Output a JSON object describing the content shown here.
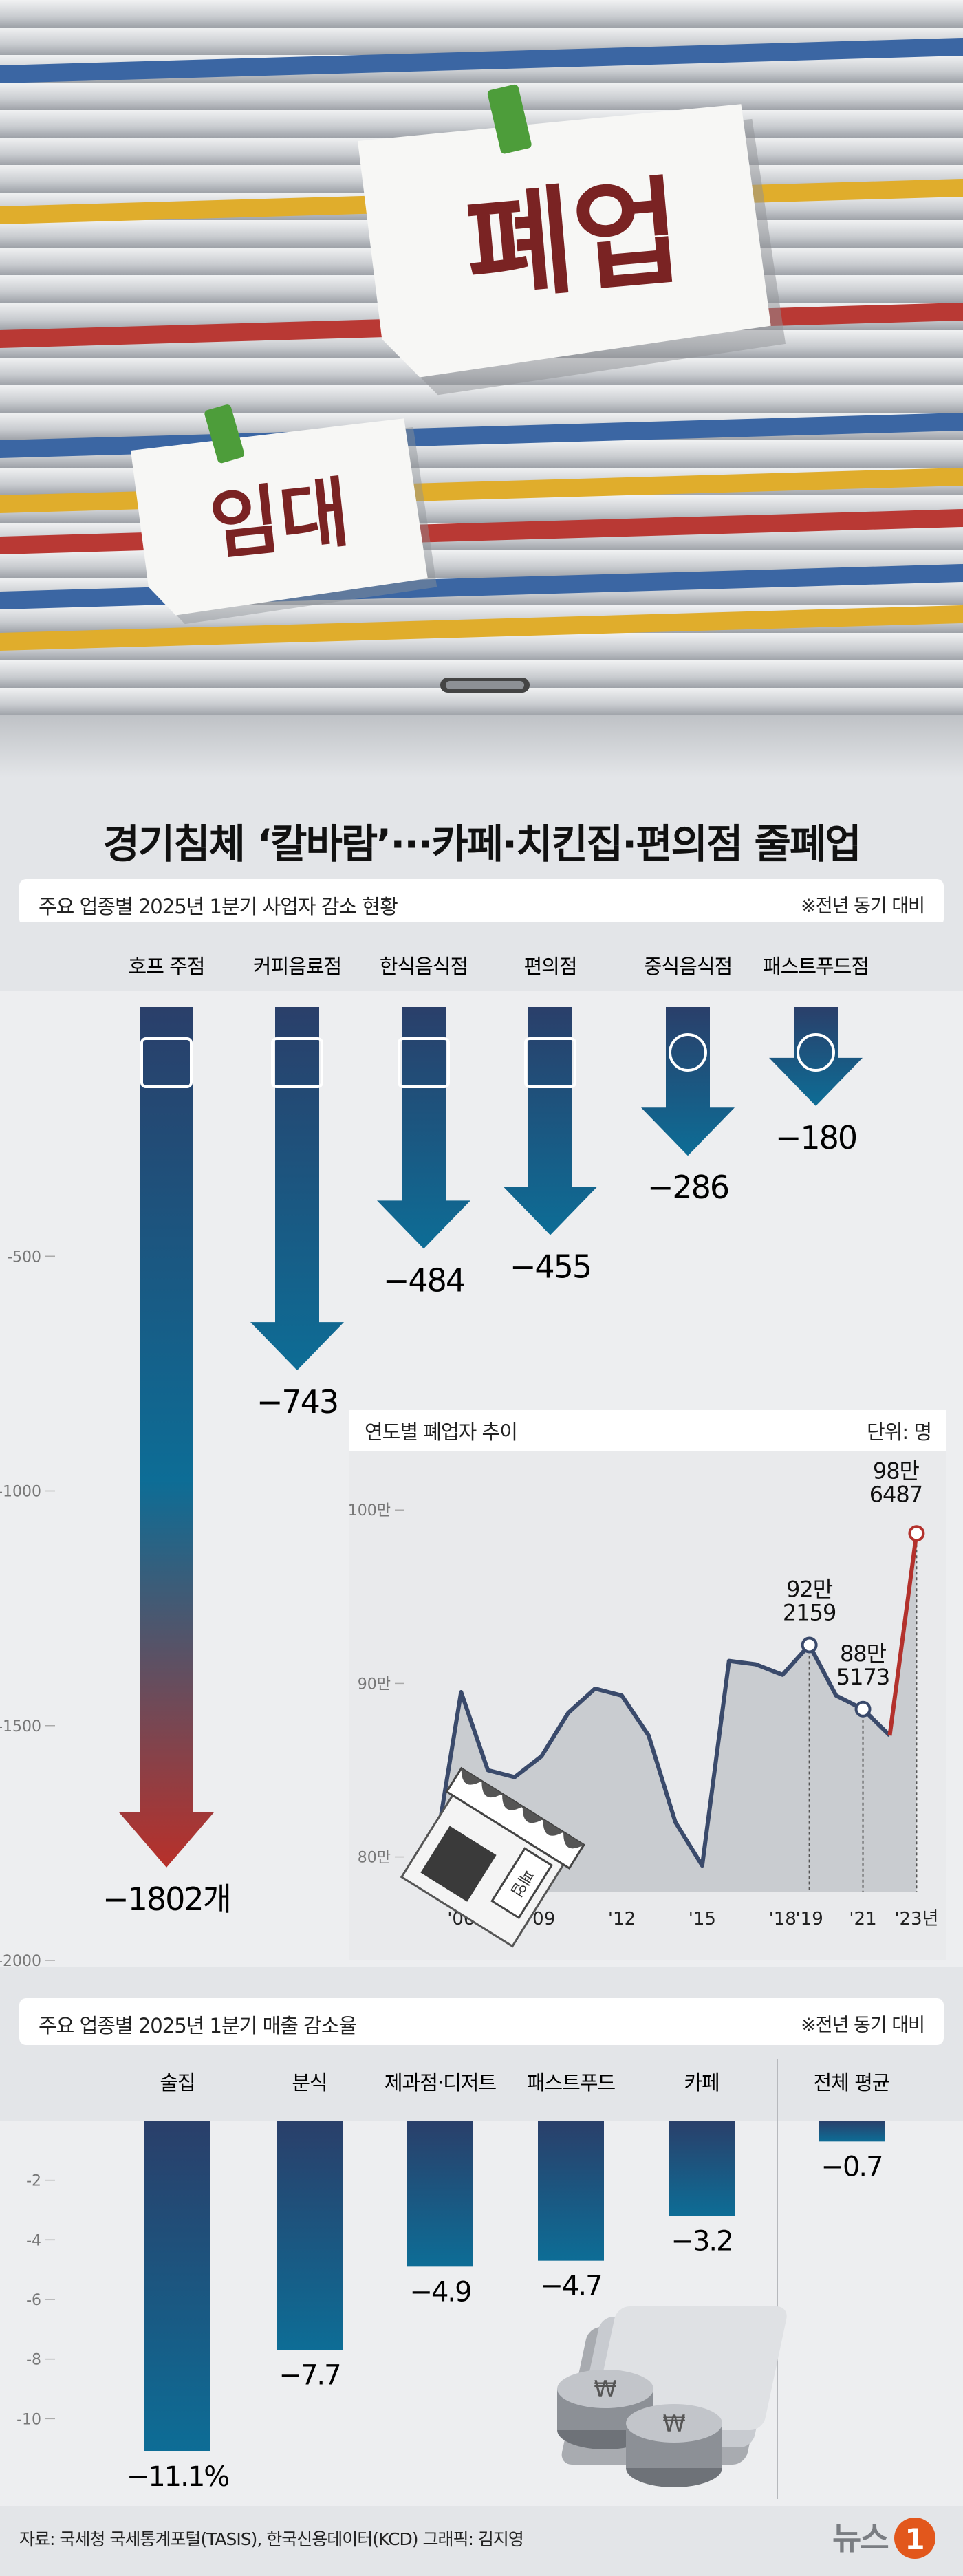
{
  "hero": {
    "sign_big": "폐업",
    "sign_small": "임대"
  },
  "title": "경기침체 ‘칼바람’···카페·치킨집·편의점 줄폐업",
  "section1": {
    "heading": "주요 업종별 2025년 1분기 사업자 감소 현황",
    "note": "※전년 동기 대비"
  },
  "section2": {
    "heading": "주요 업종별 2025년 1분기 매출 감소율",
    "note": "※전년 동기 대비"
  },
  "inset": {
    "heading": "연도별 폐업자 추이",
    "unit": "단위: 명",
    "store_sign": "폐업"
  },
  "source": "자료: 국세청 국세통계포털(TASIS), 한국신용데이터(KCD)   그래픽: 김지영",
  "logo": {
    "text": "뉴스",
    "mark": "1"
  },
  "colors": {
    "bar_top": "#2d3e66",
    "bar_mid": "#0f6b93",
    "bar_red": "#b3312c",
    "line": "#3a4a6b",
    "line_red": "#b3312c"
  },
  "chart_data": [
    {
      "type": "bar",
      "title": "주요 업종별 2025년 1분기 사업자 감소 현황",
      "categories": [
        "호프 주점",
        "커피음료점",
        "한식음식점",
        "편의점",
        "중식음식점",
        "패스트푸드점"
      ],
      "icons": [
        "beer-mug-icon",
        "coffee-cup-icon",
        "rice-bowl-icon",
        "convenience-store-icon",
        "noodle-bowl-icon",
        "burger-icon"
      ],
      "values": [
        -1802,
        -743,
        -484,
        -455,
        -286,
        -180
      ],
      "value_labels": [
        "−1802개",
        "−743",
        "−484",
        "−455",
        "−286",
        "−180"
      ],
      "ylim": [
        -2000,
        0
      ],
      "yticks": [
        -500,
        -1000,
        -1500,
        -2000
      ],
      "ytick_labels": [
        "-500",
        "-1000",
        "-1500",
        "-2000"
      ]
    },
    {
      "type": "line",
      "title": "연도별 폐업자 추이",
      "unit": "단위: 명",
      "x": [
        2005,
        2006,
        2007,
        2008,
        2009,
        2010,
        2011,
        2012,
        2013,
        2014,
        2015,
        2016,
        2017,
        2018,
        2019,
        2020,
        2021,
        2022,
        2023
      ],
      "y": [
        800000,
        895000,
        850000,
        846000,
        858000,
        883000,
        897000,
        893000,
        870000,
        820000,
        795000,
        913000,
        911000,
        905000,
        922159,
        893000,
        885173,
        870000,
        986487
      ],
      "ylim": [
        780000,
        1010000
      ],
      "yticks": [
        800000,
        900000,
        1000000
      ],
      "ytick_labels": [
        "80만",
        "90만",
        "100만"
      ],
      "xtick_years": [
        2006,
        2009,
        2012,
        2015,
        2018,
        2019,
        2021,
        2023
      ],
      "xtick_labels": [
        "'06",
        "'09",
        "'12",
        "'15",
        "'18",
        "'19",
        "'21",
        "'23년"
      ],
      "annotations": [
        {
          "year": 2019,
          "lines": [
            "92만",
            "2159"
          ]
        },
        {
          "year": 2021,
          "lines": [
            "88만",
            "5173"
          ]
        },
        {
          "year": 2023,
          "lines": [
            "98만",
            "6487"
          ]
        }
      ]
    },
    {
      "type": "bar",
      "title": "주요 업종별 2025년 1분기 매출 감소율",
      "categories": [
        "술집",
        "분식",
        "제과점·디저트",
        "패스트푸드",
        "카페",
        "전체 평균"
      ],
      "values": [
        -11.1,
        -7.7,
        -4.9,
        -4.7,
        -3.2,
        -0.7
      ],
      "value_labels": [
        "−11.1%",
        "−7.7",
        "−4.9",
        "−4.7",
        "−3.2",
        "−0.7"
      ],
      "ylim": [
        -12,
        0
      ],
      "yticks": [
        -2,
        -4,
        -6,
        -8,
        -10
      ],
      "ytick_labels": [
        "-2",
        "-4",
        "-6",
        "-8",
        "-10"
      ]
    }
  ]
}
